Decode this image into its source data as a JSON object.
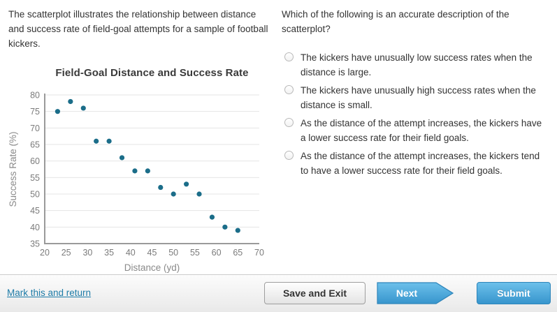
{
  "left_panel": {
    "description": "The scatterplot illustrates the relationship between distance and success rate of field-goal attempts for a sample of football kickers."
  },
  "chart_data": {
    "type": "scatter",
    "title": "Field-Goal Distance and Success Rate",
    "xlabel": "Distance (yd)",
    "ylabel": "Success Rate (%)",
    "xlim": [
      20,
      70
    ],
    "ylim": [
      35,
      80
    ],
    "xticks": [
      20,
      25,
      30,
      35,
      40,
      45,
      50,
      55,
      60,
      65,
      70
    ],
    "yticks": [
      35,
      40,
      45,
      50,
      55,
      60,
      65,
      70,
      75,
      80
    ],
    "points": [
      [
        23,
        75
      ],
      [
        26,
        78
      ],
      [
        29,
        76
      ],
      [
        32,
        66
      ],
      [
        35,
        66
      ],
      [
        38,
        61
      ],
      [
        41,
        57
      ],
      [
        44,
        57
      ],
      [
        47,
        52
      ],
      [
        50,
        50
      ],
      [
        53,
        53
      ],
      [
        56,
        50
      ],
      [
        59,
        43
      ],
      [
        62,
        40
      ],
      [
        65,
        39
      ]
    ],
    "point_color": "#1b6d89",
    "grid": "horizontal",
    "legend": "none"
  },
  "question": {
    "prompt": "Which of the following is an accurate description of the scatterplot?",
    "options": [
      {
        "label": "The kickers have unusually low success rates when the distance is large.",
        "selected": false
      },
      {
        "label": "The kickers have unusually high success rates when the distance is small.",
        "selected": false
      },
      {
        "label": "As the distance of the attempt increases, the kickers have a lower success rate for their field goals.",
        "selected": false
      },
      {
        "label": "As the distance of the attempt increases, the kickers tend to have a lower success rate for their field goals.",
        "selected": false
      }
    ]
  },
  "footer": {
    "mark_link": "Mark this and return",
    "save_exit": "Save and Exit",
    "next": "Next",
    "submit": "Submit"
  },
  "colors": {
    "point_teal": "#1b6d89",
    "link_blue": "#1e7ca8",
    "button_blue_top": "#6cc0eb",
    "button_blue_bottom": "#3795cd",
    "button_blue_border": "#2e85ba"
  }
}
